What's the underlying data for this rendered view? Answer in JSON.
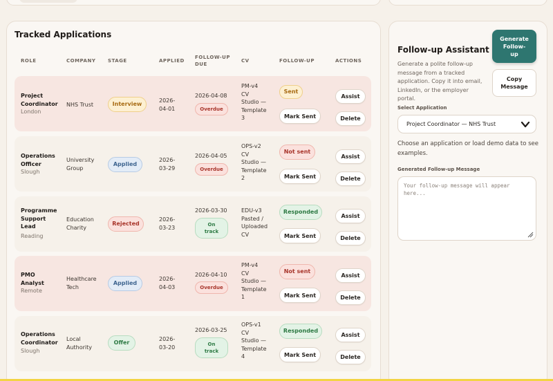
{
  "tracked": {
    "title": "Tracked Applications",
    "columns": {
      "role": "ROLE",
      "company": "COMPANY",
      "stage": "STAGE",
      "applied": "APPLIED",
      "followup_due_1": "FOLLOW-UP",
      "followup_due_2": "DUE",
      "cv": "CV",
      "followup": "FOLLOW-UP",
      "actions": "ACTIONS"
    },
    "rows": [
      {
        "role_1": "Project",
        "role_2": "Coordinator",
        "role_3": "",
        "location": "London",
        "company_1": "NHS Trust",
        "company_2": "",
        "stage": "Interview",
        "applied_1": "2026-",
        "applied_2": "04-01",
        "due_date": "2026-04-08",
        "due_status_1": "Overdue",
        "due_status_2": "",
        "cv_1": "PM-v4",
        "cv_2": "CV",
        "cv_3": "Studio —",
        "cv_4": "Template",
        "cv_5": "3",
        "followup": "Sent",
        "mark_label": "Mark Sent",
        "assist_label": "Assist",
        "delete_label": "Delete"
      },
      {
        "role_1": "Operations",
        "role_2": "Officer",
        "role_3": "",
        "location": "Slough",
        "company_1": "University",
        "company_2": "Group",
        "stage": "Applied",
        "applied_1": "2026-",
        "applied_2": "03-29",
        "due_date": "2026-04-05",
        "due_status_1": "Overdue",
        "due_status_2": "",
        "cv_1": "OPS-v2",
        "cv_2": "CV",
        "cv_3": "Studio —",
        "cv_4": "Template",
        "cv_5": "2",
        "followup": "Not sent",
        "mark_label": "Mark Sent",
        "assist_label": "Assist",
        "delete_label": "Delete"
      },
      {
        "role_1": "Programme",
        "role_2": "Support",
        "role_3": "Lead",
        "location": "Reading",
        "company_1": "Education",
        "company_2": "Charity",
        "stage": "Rejected",
        "applied_1": "2026-",
        "applied_2": "03-23",
        "due_date": "2026-03-30",
        "due_status_1": "On",
        "due_status_2": "track",
        "cv_1": "EDU-v3",
        "cv_2": "Pasted /",
        "cv_3": "Uploaded",
        "cv_4": "CV",
        "cv_5": "",
        "followup": "Responded",
        "mark_label": "Mark Sent",
        "assist_label": "Assist",
        "delete_label": "Delete"
      },
      {
        "role_1": "PMO",
        "role_2": "Analyst",
        "role_3": "",
        "location": "Remote",
        "company_1": "Healthcare",
        "company_2": "Tech",
        "stage": "Applied",
        "applied_1": "2026-",
        "applied_2": "04-03",
        "due_date": "2026-04-10",
        "due_status_1": "Overdue",
        "due_status_2": "",
        "cv_1": "PM-v4",
        "cv_2": "CV",
        "cv_3": "Studio —",
        "cv_4": "Template",
        "cv_5": "1",
        "followup": "Not sent",
        "mark_label": "Mark Sent",
        "assist_label": "Assist",
        "delete_label": "Delete"
      },
      {
        "role_1": "Operations",
        "role_2": "Coordinator",
        "role_3": "",
        "location": "Slough",
        "company_1": "Local",
        "company_2": "Authority",
        "stage": "Offer",
        "applied_1": "2026-",
        "applied_2": "03-20",
        "due_date": "2026-03-25",
        "due_status_1": "On",
        "due_status_2": "track",
        "cv_1": "OPS-v1",
        "cv_2": "CV",
        "cv_3": "Studio —",
        "cv_4": "Template",
        "cv_5": "4",
        "followup": "Responded",
        "mark_label": "Mark Sent",
        "assist_label": "Assist",
        "delete_label": "Delete"
      }
    ]
  },
  "assistant": {
    "title": "Follow-up Assistant",
    "desc_1": "Generate a polite follow-up",
    "desc_2": "message from a tracked",
    "desc_3": "application. Copy it into email,",
    "desc_4": "LinkedIn, or the employer portal.",
    "generate_1": "Generate",
    "generate_2": "Follow-",
    "generate_3": "up",
    "copy_1": "Copy",
    "copy_2": "Message",
    "select_label": "Select Application",
    "select_value": "Project Coordinator — NHS Trust",
    "helper_1": "Choose an application or load demo data to see",
    "helper_2": "examples.",
    "message_label": "Generated Follow-up Message",
    "message_placeholder_1": "Your follow-up message will appear",
    "message_placeholder_2": "here..."
  },
  "icons": {
    "select_chevron": "chevron-down-icon",
    "resize_handle": "resize-handle-icon"
  },
  "colors": {
    "accent": "#2e7670",
    "overdue_row": "#f7e6e1",
    "background": "#f6f1ea"
  }
}
